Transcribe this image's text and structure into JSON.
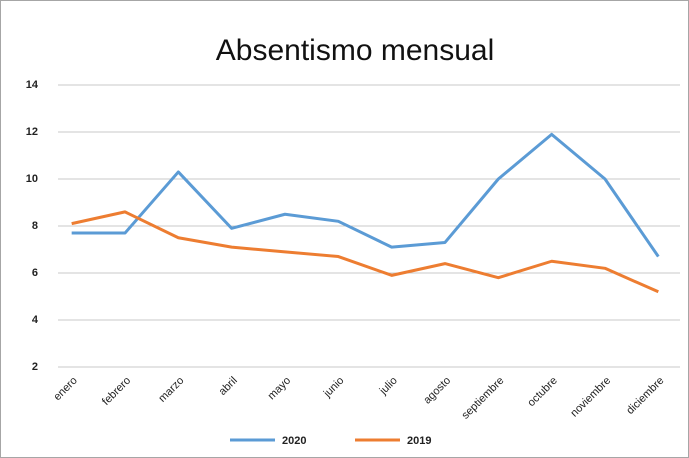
{
  "chart_data": {
    "type": "line",
    "title": "Absentismo mensual",
    "categories": [
      "enero",
      "febrero",
      "marzo",
      "abril",
      "mayo",
      "junio",
      "julio",
      "agosto",
      "septiembre",
      "octubre",
      "noviembre",
      "diciembre"
    ],
    "series": [
      {
        "name": "2020",
        "color": "#5b9bd5",
        "values": [
          7.7,
          7.7,
          10.3,
          7.9,
          8.5,
          8.2,
          7.1,
          7.3,
          10,
          11.9,
          10,
          6.7
        ]
      },
      {
        "name": "2019",
        "color": "#ed7d31",
        "values": [
          8.1,
          8.6,
          7.5,
          7.1,
          6.9,
          6.7,
          5.9,
          6.4,
          5.8,
          6.5,
          6.2,
          5.2
        ]
      }
    ],
    "ylim": [
      2,
      14
    ],
    "yticks": [
      2,
      4,
      6,
      8,
      10,
      12,
      14
    ],
    "grid": true,
    "legend": "bottom"
  }
}
